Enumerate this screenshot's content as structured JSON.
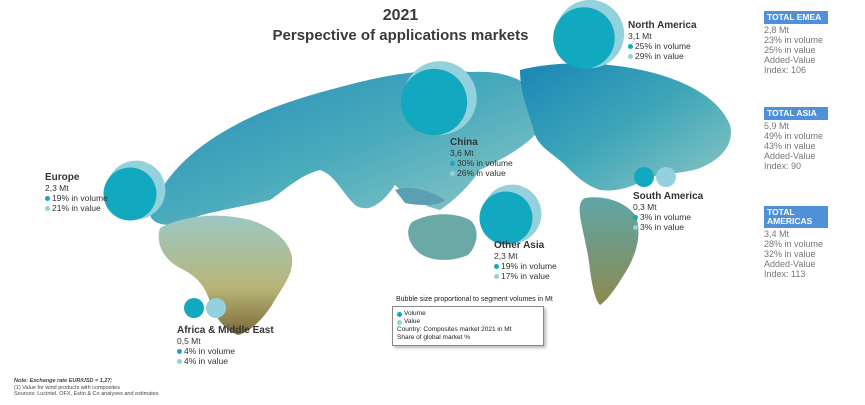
{
  "header": {
    "year": "2021",
    "title": "Perspective of applications markets"
  },
  "colors": {
    "volume": "#12a8bf",
    "value": "#93d1dc",
    "total_header": "#4f90d9"
  },
  "regions": [
    {
      "key": "north_america",
      "name": "North America",
      "mt": "3,1 Mt",
      "volume": "25% in volume",
      "value": "29% in value",
      "volume_mt": 3.1
    },
    {
      "key": "china",
      "name": "China",
      "mt": "3,6 Mt",
      "volume": "30% in volume",
      "value": "26% in value",
      "volume_mt": 3.6
    },
    {
      "key": "europe",
      "name": "Europe",
      "mt": "2,3 Mt",
      "volume": "19% in volume",
      "value": "21% in value",
      "volume_mt": 2.3
    },
    {
      "key": "south_america",
      "name": "South America",
      "mt": "0,3 Mt",
      "volume": "3% in volume",
      "value": "3% in value",
      "volume_mt": 0.3
    },
    {
      "key": "other_asia",
      "name": "Other Asia",
      "mt": "2,3 Mt",
      "volume": "19% in volume",
      "value": "17% in value",
      "volume_mt": 2.3
    },
    {
      "key": "africa_me",
      "name": "Africa & Middle East",
      "mt": "0,5 Mt",
      "volume": "4% in volume",
      "value": "4% in value",
      "volume_mt": 0.5
    }
  ],
  "totals": [
    {
      "header": "TOTAL EMEA",
      "lines": [
        "2,8 Mt",
        "23% in volume",
        "25% in value",
        "Added-Value",
        "Index: 106"
      ]
    },
    {
      "header": "TOTAL ASIA",
      "lines": [
        "5,9 Mt",
        "49% in volume",
        "43% in value",
        "Added-Value",
        "Index: 90"
      ]
    },
    {
      "header": "TOTAL AMERICAS",
      "lines": [
        "3,4 Mt",
        "28% in volume",
        "32% in value",
        "Added-Value",
        "Index: 113"
      ]
    }
  ],
  "legend": {
    "title": "Bubble size proportional to segment volumes in Mt",
    "volume_label": "Volume",
    "value_label": "Value",
    "country_line": "Country: Composites market 2021 in Mt",
    "share_line": "Share of global market %"
  },
  "notes": {
    "line1": "Note: Exchange rate EUR/USD = 1,27;",
    "line2": "(1) Value for wind products with composites",
    "line3": "Sources: Lucintel, OFX, Estin & Co analyses and estimates"
  }
}
